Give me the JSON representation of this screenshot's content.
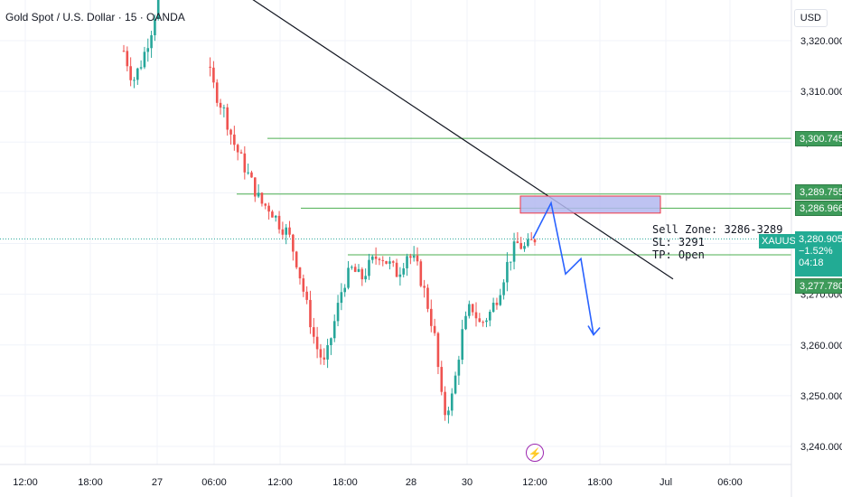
{
  "header": {
    "title": "Gold Spot / U.S. Dollar · 15 · OANDA",
    "currency": "USD"
  },
  "colors": {
    "up": "#26a69a",
    "down": "#ef5350",
    "level_line": "#4caf50",
    "trendline": "#131722",
    "zone_fill": "#b3b9f0",
    "zone_border": "#f23645",
    "projection": "#2962ff",
    "grid": "#f0f3fa",
    "axis_text": "#131722"
  },
  "annotation": {
    "line1": "Sell Zone: 3286-3289",
    "line2": "SL: 3291",
    "line3": "TP: Open"
  },
  "price_tags": {
    "symbol": "XAUUSD",
    "last_price": "3,280.905",
    "change": "−1.52%",
    "countdown": "04:18",
    "level_3300": "3,300.745",
    "level_3289": "3,289.755",
    "level_3286": "3,286.966",
    "level_3277": "3,277.780"
  },
  "event_marker": {
    "icon": "lightning-icon",
    "glyph": "⚡"
  },
  "chart_data": {
    "type": "line",
    "title": "Gold Spot / U.S. Dollar · 15 · OANDA",
    "xlabel": "",
    "ylabel": "",
    "ylim": [
      3238,
      3328
    ],
    "y_ticks": [
      "3,320.000",
      "3,310.000",
      "3,300.000",
      "3,290.000",
      "3,280.000",
      "3,270.000",
      "3,260.000",
      "3,250.000",
      "3,240.000"
    ],
    "y_tick_values": [
      3320,
      3310,
      3300,
      3290,
      3280,
      3270,
      3260,
      3250,
      3240
    ],
    "x_ticks": [
      "12:00",
      "18:00",
      "27",
      "06:00",
      "12:00",
      "18:00",
      "28",
      "30",
      "12:00",
      "18:00",
      "Jul",
      "06:00"
    ],
    "price_path": [
      3318,
      3312,
      3316,
      3322,
      3330,
      3326,
      3320,
      3318,
      3314,
      3316,
      3310,
      3306,
      3300,
      3296,
      3292,
      3288,
      3287,
      3284,
      3282,
      3276,
      3268,
      3260,
      3256,
      3264,
      3272,
      3275,
      3273,
      3276,
      3278,
      3276,
      3274,
      3278,
      3276,
      3270,
      3262,
      3246,
      3250,
      3262,
      3268,
      3264,
      3266,
      3270,
      3276,
      3280,
      3279,
      3281
    ],
    "levels": [
      3300.745,
      3289.755,
      3286.966,
      3277.78
    ],
    "last_price": 3280.905,
    "trendline": {
      "from_price": 3334,
      "to_price": 3273
    },
    "sell_zone": [
      3286,
      3289
    ],
    "projection": [
      3281,
      3288,
      3274,
      3277,
      3262
    ]
  }
}
